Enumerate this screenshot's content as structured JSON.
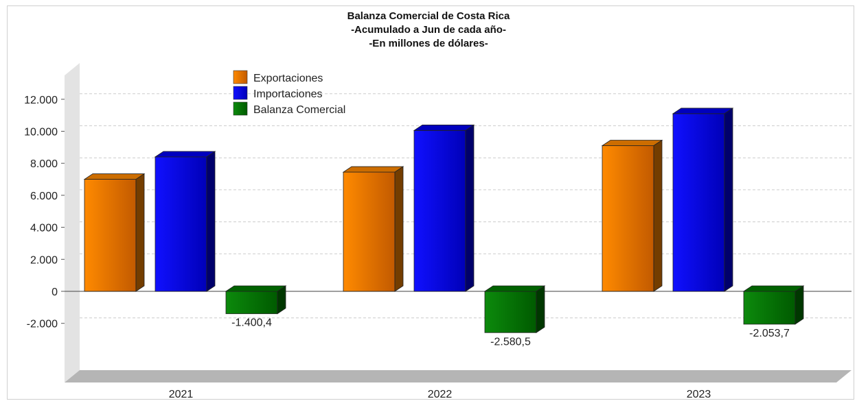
{
  "chart_data": {
    "type": "bar",
    "title": [
      "Balanza Comercial de Costa Rica",
      "-Acumulado a Jun de cada año-",
      "-En millones de dólares-"
    ],
    "categories": [
      "2021",
      "2022",
      "2023"
    ],
    "series": [
      {
        "name": "Exportaciones",
        "color": "#ff8800",
        "values": [
          7000,
          7450,
          9100
        ]
      },
      {
        "name": "Importaciones",
        "color": "#0000ee",
        "values": [
          8400,
          10050,
          11100
        ]
      },
      {
        "name": "Balanza Comercial",
        "color": "#007a00",
        "values": [
          -1400.4,
          -2580.5,
          -2053.7
        ]
      }
    ],
    "data_labels": {
      "Balanza Comercial": [
        "-1.400,4",
        "-2.580,5",
        "-2.053,7"
      ]
    },
    "yticks": [
      -2000,
      0,
      2000,
      4000,
      6000,
      8000,
      10000,
      12000
    ],
    "ytick_labels": [
      "-2.000",
      "0",
      "2.000",
      "4.000",
      "6.000",
      "8.000",
      "10.000",
      "12.000"
    ],
    "ylim": [
      -3000,
      12000
    ],
    "grid": true,
    "legend_position": "top-left"
  }
}
